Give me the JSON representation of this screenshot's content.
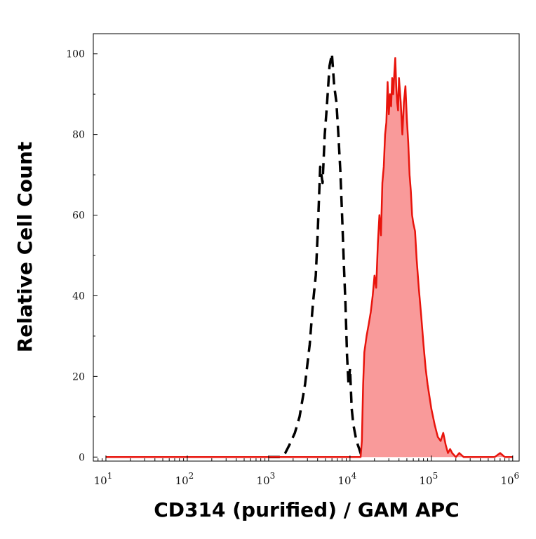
{
  "chart_data": {
    "type": "area",
    "title": "",
    "xlabel": "CD314 (purified) / GAM APC",
    "ylabel": "Relative Cell Count",
    "xscale": "log",
    "xlim": [
      7,
      1200000
    ],
    "ylim": [
      -1,
      105
    ],
    "grid": false,
    "legend": "none",
    "yticks": [
      {
        "value": 0,
        "label": "0"
      },
      {
        "value": 20,
        "label": "20"
      },
      {
        "value": 40,
        "label": "40"
      },
      {
        "value": 60,
        "label": "60"
      },
      {
        "value": 80,
        "label": "80"
      },
      {
        "value": 100,
        "label": "100"
      }
    ],
    "xticks": [
      {
        "value": 10,
        "base": "10",
        "exp": "1"
      },
      {
        "value": 100,
        "base": "10",
        "exp": "2"
      },
      {
        "value": 1000,
        "base": "10",
        "exp": "3"
      },
      {
        "value": 10000,
        "base": "10",
        "exp": "4"
      },
      {
        "value": 100000,
        "base": "10",
        "exp": "5"
      },
      {
        "value": 1000000,
        "base": "10",
        "exp": "6"
      }
    ],
    "series": [
      {
        "style": "dashed-outline",
        "color": "#000000",
        "x": [
          1000,
          1400,
          1600,
          1800,
          2100,
          2400,
          2800,
          3200,
          3500,
          3800,
          4000,
          4300,
          4600,
          4900,
          5200,
          5600,
          6000,
          6400,
          6800,
          7200,
          7600,
          8000,
          8400,
          8800,
          9200,
          9600,
          10000,
          10500,
          11000,
          12000,
          13000,
          14000,
          15000
        ],
        "y": [
          0,
          0,
          1,
          3,
          6,
          10,
          18,
          28,
          38,
          45,
          55,
          72,
          68,
          80,
          87,
          97,
          100,
          92,
          88,
          80,
          71,
          60,
          48,
          38,
          25,
          18,
          22,
          12,
          8,
          4,
          2,
          0,
          0
        ]
      },
      {
        "style": "filled",
        "color": "#e8140c",
        "fill": "#f99a9a",
        "x": [
          10,
          1000,
          5000,
          10000,
          13500,
          14000,
          14500,
          15000,
          16000,
          17000,
          18000,
          19000,
          20000,
          21000,
          22000,
          23000,
          24000,
          25000,
          26000,
          27000,
          28000,
          29000,
          30000,
          31000,
          32000,
          33000,
          34000,
          35000,
          36000,
          37000,
          38000,
          39000,
          40000,
          42000,
          44000,
          46000,
          48000,
          50000,
          52000,
          54000,
          56000,
          58000,
          60000,
          63000,
          66000,
          70000,
          75000,
          80000,
          85000,
          90000,
          100000,
          110000,
          120000,
          130000,
          140000,
          150000,
          160000,
          170000,
          180000,
          200000,
          220000,
          250000,
          300000,
          350000,
          400000,
          500000,
          600000,
          700000,
          800000,
          1000000
        ],
        "y": [
          0,
          0,
          0,
          0,
          0,
          4,
          18,
          26,
          30,
          33,
          36,
          40,
          45,
          42,
          53,
          60,
          55,
          68,
          72,
          80,
          83,
          93,
          85,
          90,
          87,
          94,
          90,
          95,
          99,
          92,
          88,
          86,
          94,
          88,
          80,
          88,
          92,
          84,
          78,
          70,
          66,
          60,
          58,
          56,
          49,
          42,
          35,
          28,
          22,
          18,
          12,
          8,
          5,
          4,
          6,
          3,
          1,
          2,
          1,
          0,
          1,
          0,
          0,
          0,
          0,
          0,
          0,
          1,
          0,
          0
        ]
      }
    ]
  }
}
